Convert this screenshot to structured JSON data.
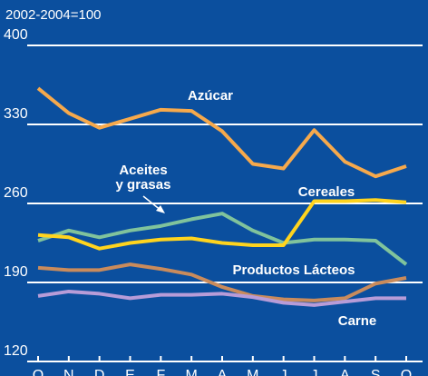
{
  "chart_data": {
    "type": "line",
    "subtitle": "2002-2004=100",
    "categories": [
      "O",
      "N",
      "D",
      "E",
      "F",
      "M",
      "A",
      "M",
      "J",
      "J",
      "A",
      "S",
      "O"
    ],
    "ylim": [
      120,
      400
    ],
    "yticks": [
      120,
      190,
      260,
      330,
      400
    ],
    "grid": true,
    "series": [
      {
        "name": "Azúcar",
        "color": "#f6a94c",
        "values": [
          362,
          340,
          327,
          335,
          343,
          342,
          324,
          295,
          291,
          325,
          297,
          284,
          293
        ]
      },
      {
        "name": "Aceites y grasas",
        "color": "#80c39c",
        "values": [
          227,
          236,
          230,
          236,
          240,
          246,
          251,
          236,
          225,
          228,
          228,
          227,
          206
        ]
      },
      {
        "name": "Cereales",
        "color": "#ffd41e",
        "values": [
          232,
          230,
          220,
          225,
          228,
          229,
          225,
          223,
          223,
          262,
          262,
          263,
          261
        ]
      },
      {
        "name": "Productos Lácteos",
        "color": "#c98b5c",
        "values": [
          203,
          201,
          201,
          206,
          202,
          197,
          186,
          178,
          175,
          174,
          176,
          189,
          194
        ]
      },
      {
        "name": "Carne",
        "color": "#b79cd8",
        "values": [
          178,
          182,
          180,
          176,
          179,
          179,
          180,
          177,
          172,
          170,
          173,
          176,
          176
        ]
      }
    ]
  }
}
